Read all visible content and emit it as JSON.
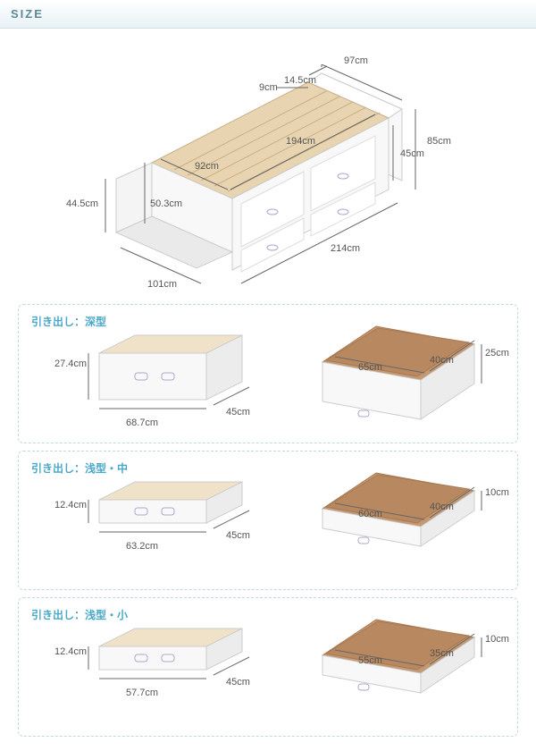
{
  "header": {
    "title": "SIZE"
  },
  "bed": {
    "dims": {
      "width_top": "97cm",
      "shelf_depth": "14.5cm",
      "shelf_height": "9cm",
      "headboard_height": "85cm",
      "inner_width": "92cm",
      "inner_length": "194cm",
      "side_panel_height": "45cm",
      "foot_height": "44.5cm",
      "deck_height": "50.3cm",
      "footprint_width": "101cm",
      "footprint_length": "214cm"
    },
    "colors": {
      "body": "#f8f8f8",
      "slats": "#e8d4b0",
      "shadow": "#d8d8d8",
      "dim_line": "#666666",
      "handle": "#c8d8e0"
    }
  },
  "drawers": [
    {
      "label": "引き出し：深型",
      "outer": {
        "w": "68.7cm",
        "d": "45cm",
        "h": "27.4cm"
      },
      "inner": {
        "w": "65cm",
        "d": "40cm",
        "h": "25cm"
      },
      "tall": true
    },
    {
      "label": "引き出し：浅型・中",
      "outer": {
        "w": "63.2cm",
        "d": "45cm",
        "h": "12.4cm"
      },
      "inner": {
        "w": "60cm",
        "d": "40cm",
        "h": "10cm"
      },
      "tall": false
    },
    {
      "label": "引き出し：浅型・小",
      "outer": {
        "w": "57.7cm",
        "d": "45cm",
        "h": "12.4cm"
      },
      "inner": {
        "w": "55cm",
        "d": "35cm",
        "h": "10cm"
      },
      "tall": false
    }
  ],
  "colors": {
    "panel_border": "#c0d8e0",
    "label_color": "#4aa8c8",
    "header_text": "#5a8a9a",
    "header_bg_bottom": "#e8f2f5",
    "drawer_face": "#f8f8f8",
    "drawer_side": "#ececec",
    "drawer_interior": "#c49870",
    "drawer_interior_side": "#a87850",
    "dim_text": "#555555"
  }
}
